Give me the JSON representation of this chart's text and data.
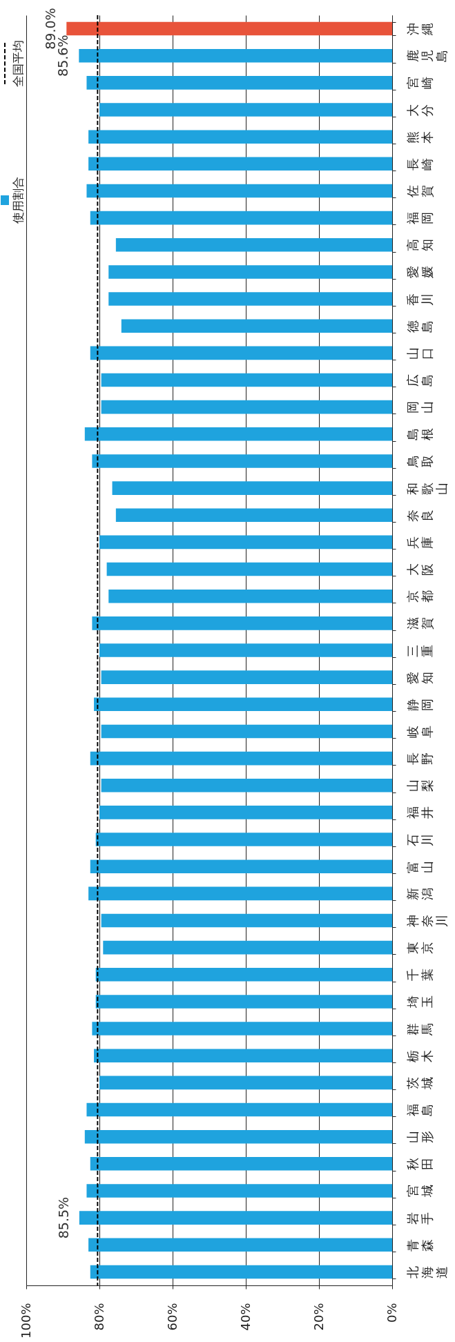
{
  "chart_data": {
    "type": "bar",
    "orientation": "horizontal",
    "categories": [
      "沖縄",
      "鹿児島",
      "宮崎",
      "大分",
      "熊本",
      "長崎",
      "佐賀",
      "福岡",
      "高知",
      "愛媛",
      "香川",
      "徳島",
      "山口",
      "広島",
      "岡山",
      "島根",
      "鳥取",
      "和歌山",
      "奈良",
      "兵庫",
      "大阪",
      "京都",
      "滋賀",
      "三重",
      "愛知",
      "静岡",
      "岐阜",
      "長野",
      "山梨",
      "福井",
      "石川",
      "富山",
      "新潟",
      "神奈川",
      "東京",
      "千葉",
      "埼玉",
      "群馬",
      "栃木",
      "茨城",
      "福島",
      "山形",
      "秋田",
      "宮城",
      "岩手",
      "青森",
      "北海道"
    ],
    "series": [
      {
        "name": "使用割合",
        "color": "#1fa3de",
        "colors": [
          "#e8533a",
          "#1fa3de",
          "#1fa3de",
          "#1fa3de",
          "#1fa3de",
          "#1fa3de",
          "#1fa3de",
          "#1fa3de",
          "#1fa3de",
          "#1fa3de",
          "#1fa3de",
          "#1fa3de",
          "#1fa3de",
          "#1fa3de",
          "#1fa3de",
          "#1fa3de",
          "#1fa3de",
          "#1fa3de",
          "#1fa3de",
          "#1fa3de",
          "#1fa3de",
          "#1fa3de",
          "#1fa3de",
          "#1fa3de",
          "#1fa3de",
          "#1fa3de",
          "#1fa3de",
          "#1fa3de",
          "#1fa3de",
          "#1fa3de",
          "#1fa3de",
          "#1fa3de",
          "#1fa3de",
          "#1fa3de",
          "#1fa3de",
          "#1fa3de",
          "#1fa3de",
          "#1fa3de",
          "#1fa3de",
          "#1fa3de",
          "#1fa3de",
          "#1fa3de",
          "#1fa3de",
          "#1fa3de",
          "#1fa3de",
          "#1fa3de",
          "#1fa3de"
        ],
        "values": [
          89.0,
          85.6,
          83.5,
          80,
          83,
          83,
          83.5,
          82.5,
          75.5,
          77.5,
          77.5,
          74,
          82.5,
          79.5,
          79.5,
          84,
          82,
          76.5,
          75.5,
          80,
          78,
          77.5,
          82,
          80,
          79.5,
          81.5,
          79.5,
          82.5,
          79.5,
          80,
          81,
          82.5,
          83,
          79.5,
          79,
          81,
          81,
          82,
          81.5,
          80,
          83.5,
          84,
          82.5,
          83.5,
          85.5,
          83,
          82.5
        ],
        "value_labels": [
          "89.0%",
          "85.6%",
          null,
          null,
          null,
          null,
          null,
          null,
          null,
          null,
          null,
          null,
          null,
          null,
          null,
          null,
          null,
          null,
          null,
          null,
          null,
          null,
          null,
          null,
          null,
          null,
          null,
          null,
          null,
          null,
          null,
          null,
          null,
          null,
          null,
          null,
          null,
          null,
          null,
          null,
          null,
          null,
          null,
          null,
          "85.5%",
          null,
          null
        ]
      }
    ],
    "xlim": [
      100,
      0
    ],
    "xticks": [
      {
        "value": 100,
        "label": "100%"
      },
      {
        "value": 80,
        "label": "80%"
      },
      {
        "value": 60,
        "label": "60%"
      },
      {
        "value": 40,
        "label": "40%"
      },
      {
        "value": 20,
        "label": "20%"
      },
      {
        "value": 0,
        "label": "0%"
      }
    ],
    "grid": "x",
    "legend": "left",
    "ref_lines": [
      {
        "axis": "x",
        "value": 80.5,
        "label": "全国平均",
        "line_style": "dashed",
        "color": "#000000"
      }
    ]
  }
}
